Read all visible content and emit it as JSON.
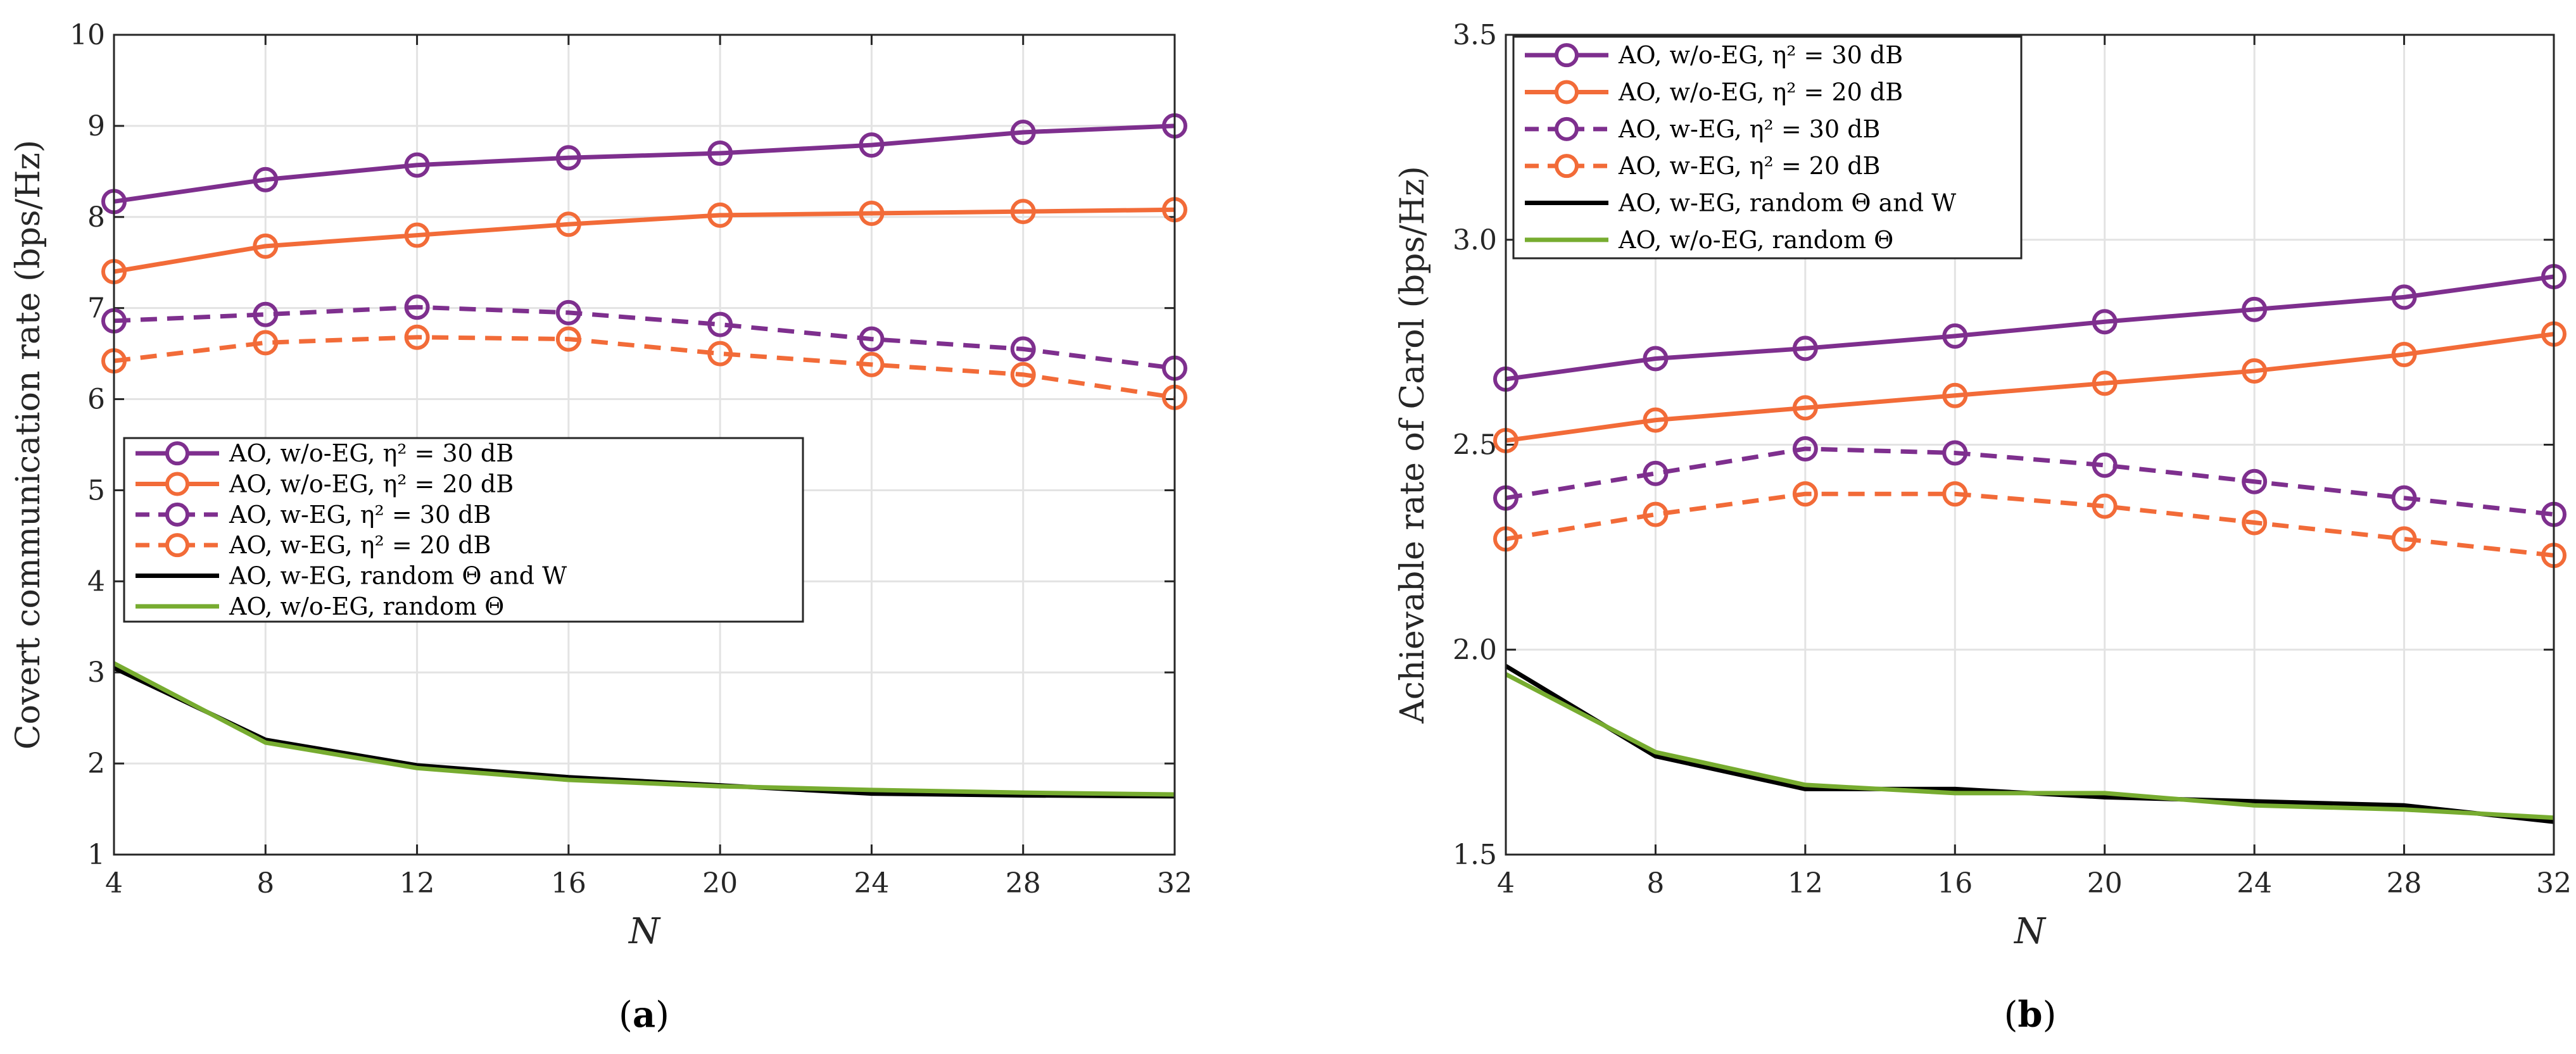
{
  "chart_data": [
    {
      "type": "line",
      "panel": "a",
      "panel_label": "(a)",
      "xlabel": "N",
      "ylabel": "Covert communication rate (bps/Hz)",
      "x": [
        4,
        8,
        12,
        16,
        20,
        24,
        28,
        32
      ],
      "xlim": [
        4,
        32
      ],
      "ylim": [
        1,
        10
      ],
      "xticks": [
        "4",
        "8",
        "12",
        "16",
        "20",
        "24",
        "28",
        "32"
      ],
      "yticks": [
        "1",
        "2",
        "3",
        "4",
        "5",
        "6",
        "7",
        "8",
        "9",
        "10"
      ],
      "grid": true,
      "legend_position": "center-left",
      "series": [
        {
          "name": "AO, w/o-EG, η² = 30 dB",
          "color": "#7E2F8E",
          "dash": "solid",
          "marker": "circle",
          "values": [
            8.17,
            8.41,
            8.57,
            8.65,
            8.7,
            8.79,
            8.93,
            9.0
          ]
        },
        {
          "name": "AO, w/o-EG, η² = 20 dB",
          "color": "#F26B38",
          "dash": "solid",
          "marker": "circle",
          "values": [
            7.4,
            7.68,
            7.8,
            7.92,
            8.02,
            8.04,
            8.06,
            8.08
          ]
        },
        {
          "name": "AO, w-EG, η² = 30 dB",
          "color": "#7E2F8E",
          "dash": "dashed",
          "marker": "circle",
          "values": [
            6.86,
            6.93,
            7.01,
            6.95,
            6.82,
            6.66,
            6.55,
            6.34
          ]
        },
        {
          "name": "AO, w-EG, η² = 20 dB",
          "color": "#F26B38",
          "dash": "dashed",
          "marker": "circle",
          "values": [
            6.42,
            6.62,
            6.68,
            6.66,
            6.5,
            6.38,
            6.27,
            6.02
          ]
        },
        {
          "name": "AO, w-EG, random Θ and W",
          "color": "#000000",
          "dash": "solid",
          "marker": "none",
          "values": [
            3.05,
            2.26,
            1.98,
            1.85,
            1.76,
            1.67,
            1.65,
            1.64
          ]
        },
        {
          "name": "AO, w/o-EG, random Θ",
          "color": "#77AC30",
          "dash": "solid",
          "marker": "none",
          "values": [
            3.1,
            2.23,
            1.95,
            1.82,
            1.75,
            1.71,
            1.68,
            1.66
          ]
        }
      ]
    },
    {
      "type": "line",
      "panel": "b",
      "panel_label": "(b)",
      "xlabel": "N",
      "ylabel": "Achievable rate of Carol (bps/Hz)",
      "x": [
        4,
        8,
        12,
        16,
        20,
        24,
        28,
        32
      ],
      "xlim": [
        4,
        32
      ],
      "ylim": [
        1.5,
        3.5
      ],
      "xticks": [
        "4",
        "8",
        "12",
        "16",
        "20",
        "24",
        "28",
        "32"
      ],
      "yticks": [
        "1.5",
        "2.0",
        "2.5",
        "3.0",
        "3.5"
      ],
      "grid": true,
      "legend_position": "top-left",
      "series": [
        {
          "name": "AO, w/o-EG, η² = 30 dB",
          "color": "#7E2F8E",
          "dash": "solid",
          "marker": "circle",
          "values": [
            2.66,
            2.71,
            2.735,
            2.765,
            2.8,
            2.83,
            2.86,
            2.91
          ]
        },
        {
          "name": "AO, w/o-EG, η² = 20 dB",
          "color": "#F26B38",
          "dash": "solid",
          "marker": "circle",
          "values": [
            2.51,
            2.56,
            2.59,
            2.62,
            2.65,
            2.68,
            2.72,
            2.77
          ]
        },
        {
          "name": "AO, w-EG, η² = 30 dB",
          "color": "#7E2F8E",
          "dash": "dashed",
          "marker": "circle",
          "values": [
            2.37,
            2.43,
            2.49,
            2.48,
            2.45,
            2.41,
            2.37,
            2.33
          ]
        },
        {
          "name": "AO, w-EG, η² = 20 dB",
          "color": "#F26B38",
          "dash": "dashed",
          "marker": "circle",
          "values": [
            2.27,
            2.33,
            2.38,
            2.38,
            2.35,
            2.31,
            2.27,
            2.23
          ]
        },
        {
          "name": "AO, w-EG, random Θ and W",
          "color": "#000000",
          "dash": "solid",
          "marker": "none",
          "values": [
            1.96,
            1.74,
            1.66,
            1.66,
            1.64,
            1.63,
            1.62,
            1.58
          ]
        },
        {
          "name": "AO, w/o-EG, random Θ",
          "color": "#77AC30",
          "dash": "solid",
          "marker": "none",
          "values": [
            1.94,
            1.75,
            1.67,
            1.65,
            1.65,
            1.62,
            1.61,
            1.59
          ]
        }
      ]
    }
  ]
}
